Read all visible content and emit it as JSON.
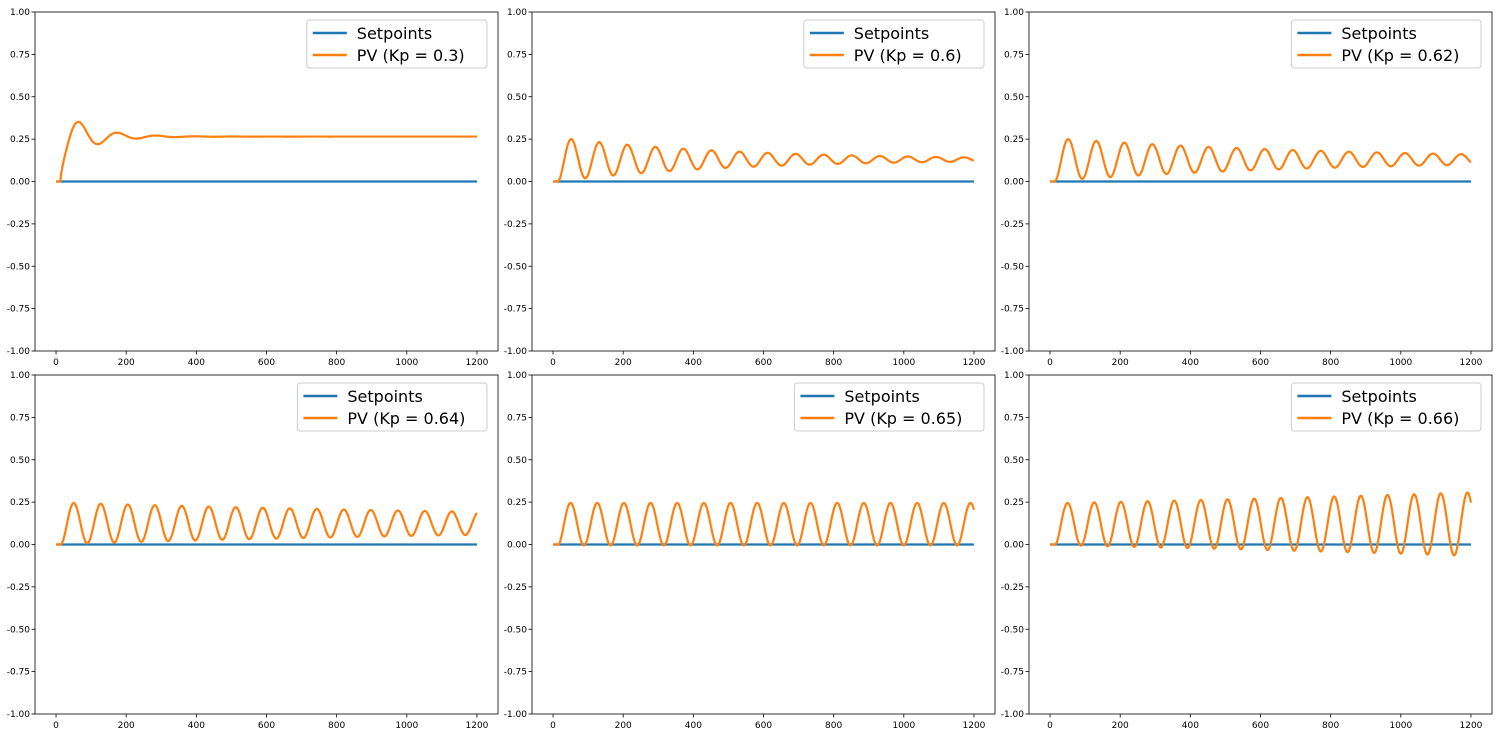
{
  "chart_data": [
    {
      "type": "line",
      "x_range": [
        0,
        1200
      ],
      "xlim": [
        -60,
        1260
      ],
      "ylim": [
        -1.0,
        1.0
      ],
      "x_ticks": [
        0,
        200,
        400,
        600,
        800,
        1000,
        1200
      ],
      "y_ticks": [
        "-1.00",
        "-0.75",
        "-0.50",
        "-0.25",
        "0.00",
        "0.25",
        "0.50",
        "0.75",
        "1.00"
      ],
      "grid": false,
      "legend_position": "top-right",
      "series": [
        {
          "name": "Setpoints",
          "color": "#1f77b4",
          "points": [
            [
              0,
              0.0
            ],
            [
              1200,
              0.0
            ]
          ]
        },
        {
          "name": "PV (Kp = 0.3)",
          "color": "#ff7f0e",
          "final_value": 0.265,
          "first_peak": 0.35,
          "period": 110,
          "damping": 0.012
        }
      ]
    },
    {
      "type": "line",
      "x_range": [
        0,
        1200
      ],
      "xlim": [
        -60,
        1260
      ],
      "ylim": [
        -1.0,
        1.0
      ],
      "x_ticks": [
        0,
        200,
        400,
        600,
        800,
        1000,
        1200
      ],
      "y_ticks": [
        "-1.00",
        "-0.75",
        "-0.50",
        "-0.25",
        "0.00",
        "0.25",
        "0.50",
        "0.75",
        "1.00"
      ],
      "grid": false,
      "legend_position": "top-right",
      "series": [
        {
          "name": "Setpoints",
          "color": "#1f77b4",
          "points": [
            [
              0,
              0.0
            ],
            [
              1200,
              0.0
            ]
          ]
        },
        {
          "name": "PV (Kp = 0.6)",
          "color": "#ff7f0e",
          "final_value": 0.13,
          "first_peak": 0.25,
          "period": 80,
          "damping": 0.002
        }
      ]
    },
    {
      "type": "line",
      "x_range": [
        0,
        1200
      ],
      "xlim": [
        -60,
        1260
      ],
      "ylim": [
        -1.0,
        1.0
      ],
      "x_ticks": [
        0,
        200,
        400,
        600,
        800,
        1000,
        1200
      ],
      "y_ticks": [
        "-1.00",
        "-0.75",
        "-0.50",
        "-0.25",
        "0.00",
        "0.25",
        "0.50",
        "0.75",
        "1.00"
      ],
      "grid": false,
      "legend_position": "top-right",
      "series": [
        {
          "name": "Setpoints",
          "color": "#1f77b4",
          "points": [
            [
              0,
              0.0
            ],
            [
              1200,
              0.0
            ]
          ]
        },
        {
          "name": "PV (Kp = 0.62)",
          "color": "#ff7f0e",
          "final_value": 0.13,
          "first_peak": 0.25,
          "period": 80,
          "damping": 0.0012
        }
      ]
    },
    {
      "type": "line",
      "x_range": [
        0,
        1200
      ],
      "xlim": [
        -60,
        1260
      ],
      "ylim": [
        -1.0,
        1.0
      ],
      "x_ticks": [
        0,
        200,
        400,
        600,
        800,
        1000,
        1200
      ],
      "y_ticks": [
        "-1.00",
        "-0.75",
        "-0.50",
        "-0.25",
        "0.00",
        "0.25",
        "0.50",
        "0.75",
        "1.00"
      ],
      "grid": false,
      "legend_position": "top-right",
      "series": [
        {
          "name": "Setpoints",
          "color": "#1f77b4",
          "points": [
            [
              0,
              0.0
            ],
            [
              1200,
              0.0
            ]
          ]
        },
        {
          "name": "PV (Kp = 0.64)",
          "color": "#ff7f0e",
          "final_value": 0.125,
          "first_peak": 0.245,
          "period": 77,
          "damping": 0.0005
        }
      ]
    },
    {
      "type": "line",
      "x_range": [
        0,
        1200
      ],
      "xlim": [
        -60,
        1260
      ],
      "ylim": [
        -1.0,
        1.0
      ],
      "x_ticks": [
        0,
        200,
        400,
        600,
        800,
        1000,
        1200
      ],
      "y_ticks": [
        "-1.00",
        "-0.75",
        "-0.50",
        "-0.25",
        "0.00",
        "0.25",
        "0.50",
        "0.75",
        "1.00"
      ],
      "grid": false,
      "legend_position": "top-right",
      "series": [
        {
          "name": "Setpoints",
          "color": "#1f77b4",
          "points": [
            [
              0,
              0.0
            ],
            [
              1200,
              0.0
            ]
          ]
        },
        {
          "name": "PV (Kp = 0.65)",
          "color": "#ff7f0e",
          "final_value": 0.12,
          "first_peak": 0.245,
          "period": 76,
          "damping": 0.0
        }
      ]
    },
    {
      "type": "line",
      "x_range": [
        0,
        1200
      ],
      "xlim": [
        -60,
        1260
      ],
      "ylim": [
        -1.0,
        1.0
      ],
      "x_ticks": [
        0,
        200,
        400,
        600,
        800,
        1000,
        1200
      ],
      "y_ticks": [
        "-1.00",
        "-0.75",
        "-0.50",
        "-0.25",
        "0.00",
        "0.25",
        "0.50",
        "0.75",
        "1.00"
      ],
      "grid": false,
      "legend_position": "top-right",
      "series": [
        {
          "name": "Setpoints",
          "color": "#1f77b4",
          "points": [
            [
              0,
              0.0
            ],
            [
              1200,
              0.0
            ]
          ]
        },
        {
          "name": "PV (Kp = 0.66)",
          "color": "#ff7f0e",
          "final_value": 0.12,
          "first_peak": 0.245,
          "period": 76,
          "damping": -0.00035
        }
      ]
    }
  ]
}
